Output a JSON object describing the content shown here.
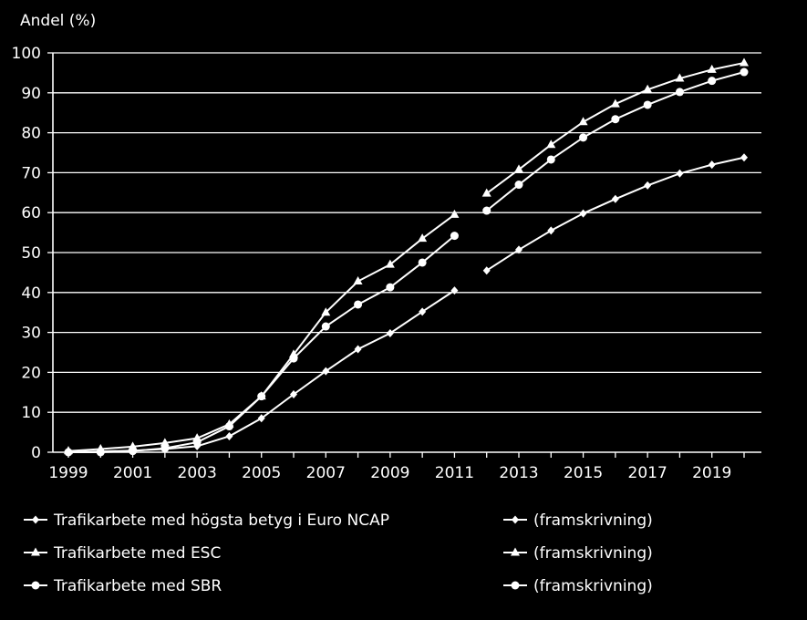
{
  "chart_data": {
    "type": "line",
    "ylabel": "Andel (%)",
    "ylim": [
      0,
      100
    ],
    "yticks": [
      0,
      10,
      20,
      30,
      40,
      50,
      60,
      70,
      80,
      90,
      100
    ],
    "xlim": [
      1999,
      2020
    ],
    "xticks": [
      1999,
      2001,
      2003,
      2005,
      2007,
      2009,
      2011,
      2013,
      2015,
      2017,
      2019
    ],
    "grid": true,
    "legend_position": "bottom",
    "series": [
      {
        "name": "Trafikarbete med högsta betyg i Euro NCAP",
        "marker": "diamond",
        "x": [
          1999,
          2000,
          2001,
          2002,
          2003,
          2004,
          2005,
          2006,
          2007,
          2008,
          2009,
          2010,
          2011
        ],
        "values": [
          0,
          0.2,
          0.4,
          0.8,
          1.5,
          4,
          8.5,
          14.5,
          20.3,
          25.8,
          29.8,
          35.2,
          40.5
        ]
      },
      {
        "name": "(framskrivning)",
        "marker": "diamond",
        "x": [
          2012,
          2013,
          2014,
          2015,
          2016,
          2017,
          2018,
          2019,
          2020
        ],
        "values": [
          45.5,
          50.7,
          55.5,
          59.8,
          63.4,
          66.8,
          69.8,
          72,
          73.8
        ]
      },
      {
        "name": "Trafikarbete med ESC",
        "marker": "triangle",
        "x": [
          1999,
          2000,
          2001,
          2002,
          2003,
          2004,
          2005,
          2006,
          2007,
          2008,
          2009,
          2010,
          2011
        ],
        "values": [
          0.3,
          0.8,
          1.4,
          2.3,
          3.5,
          7,
          14,
          24.5,
          35,
          42.8,
          47,
          53.5,
          59.5
        ]
      },
      {
        "name": "(framskrivning)",
        "marker": "triangle",
        "x": [
          2012,
          2013,
          2014,
          2015,
          2016,
          2017,
          2018,
          2019,
          2020
        ],
        "values": [
          64.8,
          70.8,
          77,
          82.7,
          87.2,
          90.8,
          93.6,
          95.8,
          97.5
        ]
      },
      {
        "name": "Trafikarbete med SBR",
        "marker": "circle",
        "x": [
          1999,
          2000,
          2001,
          2002,
          2003,
          2004,
          2005,
          2006,
          2007,
          2008,
          2009,
          2010,
          2011
        ],
        "values": [
          0,
          0,
          0.3,
          1,
          2.5,
          6.5,
          14,
          23.5,
          31.5,
          37,
          41.3,
          47.5,
          54.2
        ]
      },
      {
        "name": "(framskrivning)",
        "marker": "circle",
        "x": [
          2012,
          2013,
          2014,
          2015,
          2016,
          2017,
          2018,
          2019,
          2020
        ],
        "values": [
          60.5,
          67,
          73.3,
          78.8,
          83.4,
          87,
          90.2,
          93,
          95.2
        ]
      }
    ]
  }
}
